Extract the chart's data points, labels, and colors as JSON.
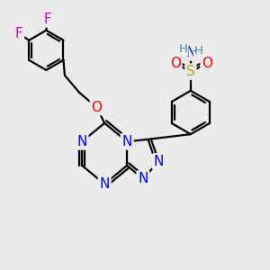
{
  "bg_color": "#ebebeb",
  "bond_color": "#000000",
  "bond_width": 1.6,
  "atom_colors": {
    "N": "#0000ff",
    "O": "#ff0000",
    "F": "#cc00cc",
    "S": "#aaaa00",
    "H_teal": "#4a9090",
    "H_gray": "#888888",
    "C": "#000000"
  },
  "fig_size": [
    3.0,
    3.0
  ],
  "dpi": 100
}
